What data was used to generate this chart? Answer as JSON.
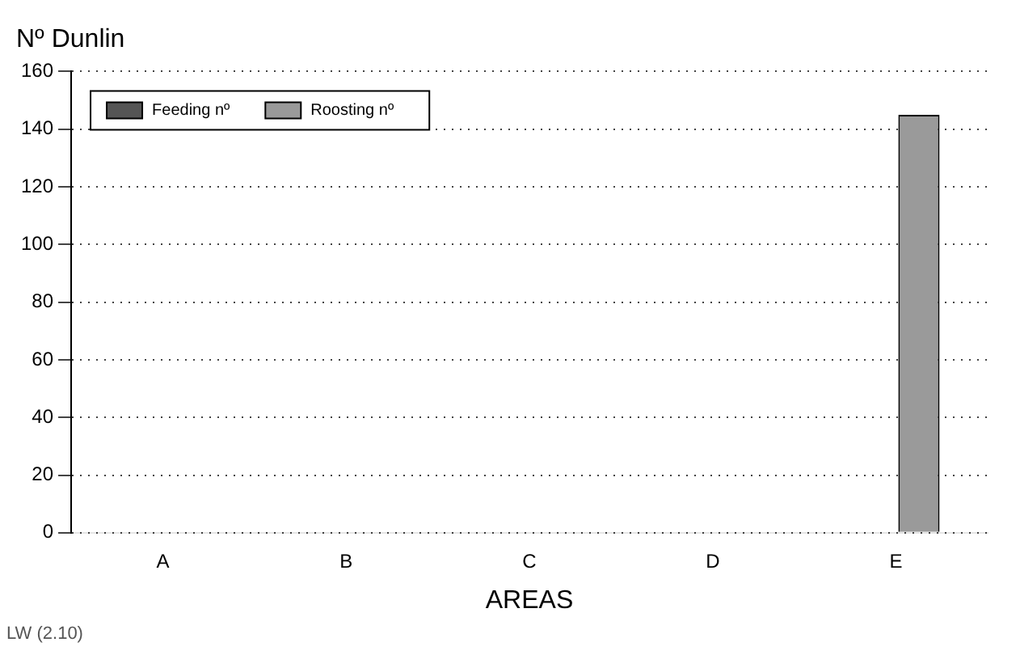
{
  "chart_data": {
    "type": "bar",
    "title": "Nº Dunlin",
    "xlabel": "AREAS",
    "categories": [
      "A",
      "B",
      "C",
      "D",
      "E"
    ],
    "series": [
      {
        "name": "Feeding nº",
        "color": "#555555",
        "values": [
          0,
          0,
          0,
          0,
          0
        ]
      },
      {
        "name": "Roosting nº",
        "color": "#9a9a9a",
        "values": [
          0,
          0,
          0,
          0,
          145
        ]
      }
    ],
    "ylim": [
      0,
      160
    ],
    "yticks": [
      0,
      20,
      40,
      60,
      80,
      100,
      120,
      140,
      160
    ],
    "grid": "y",
    "legend": "top left",
    "line_style": "dotted",
    "annotations": [
      "LW (2.10)"
    ]
  }
}
